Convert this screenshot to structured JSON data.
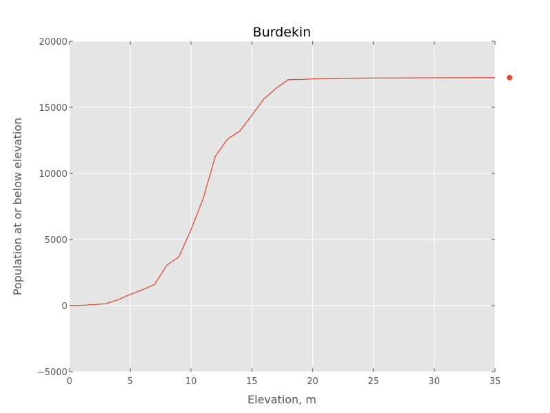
{
  "chart_data": {
    "type": "line",
    "title": "Burdekin",
    "xlabel": "Elevation, m",
    "ylabel": "Population at or below elevation",
    "xlim": [
      0,
      35
    ],
    "ylim": [
      -5000,
      20000
    ],
    "xticks": [
      0,
      5,
      10,
      15,
      20,
      25,
      30,
      35
    ],
    "yticks": [
      -5000,
      0,
      5000,
      10000,
      15000,
      20000
    ],
    "xtick_labels": [
      "0",
      "5",
      "10",
      "15",
      "20",
      "25",
      "30",
      "35"
    ],
    "ytick_labels": [
      "−5000",
      "0",
      "5000",
      "10000",
      "15000",
      "20000"
    ],
    "grid": true,
    "series": [
      {
        "color": "#e24a33",
        "x": [
          0,
          1,
          2,
          3,
          4,
          5,
          6,
          7,
          8,
          9,
          10,
          11,
          12,
          13,
          14,
          15,
          16,
          17,
          18,
          19,
          20,
          22,
          25,
          28,
          30,
          33,
          35
        ],
        "y": [
          0,
          20,
          80,
          150,
          450,
          850,
          1200,
          1600,
          3050,
          3700,
          5750,
          8100,
          11300,
          12600,
          13200,
          14400,
          15650,
          16450,
          17100,
          17110,
          17160,
          17200,
          17220,
          17230,
          17240,
          17245,
          17250
        ]
      }
    ],
    "markers": [
      {
        "color": "#e24a33",
        "x": 36.2,
        "y": 17250
      }
    ]
  }
}
